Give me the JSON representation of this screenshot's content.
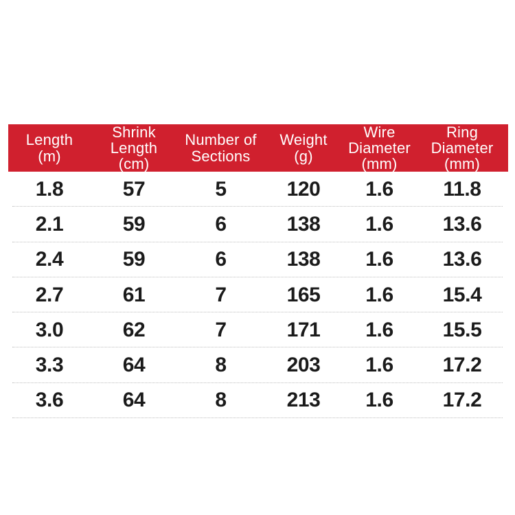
{
  "page": {
    "background_color": "#ffffff"
  },
  "table": {
    "header_bg_color": "#d0202e",
    "header_text_color": "#ffffff",
    "body_text_color": "#1b1b1b",
    "divider_color": "#bdbdbd",
    "columns": [
      {
        "label": "Length\n(m)"
      },
      {
        "label": "Shrink\nLength\n(cm)"
      },
      {
        "label": "Number of\nSections"
      },
      {
        "label": "Weight\n(g)"
      },
      {
        "label": "Wire\nDiameter\n(mm)"
      },
      {
        "label": "Ring\nDiameter\n(mm)"
      }
    ],
    "rows": [
      {
        "cells": [
          "1.8",
          "57",
          "5",
          "120",
          "1.6",
          "11.8"
        ]
      },
      {
        "cells": [
          "2.1",
          "59",
          "6",
          "138",
          "1.6",
          "13.6"
        ]
      },
      {
        "cells": [
          "2.4",
          "59",
          "6",
          "138",
          "1.6",
          "13.6"
        ]
      },
      {
        "cells": [
          "2.7",
          "61",
          "7",
          "165",
          "1.6",
          "15.4"
        ]
      },
      {
        "cells": [
          "3.0",
          "62",
          "7",
          "171",
          "1.6",
          "15.5"
        ]
      },
      {
        "cells": [
          "3.3",
          "64",
          "8",
          "203",
          "1.6",
          "17.2"
        ]
      },
      {
        "cells": [
          "3.6",
          "64",
          "8",
          "213",
          "1.6",
          "17.2"
        ]
      }
    ]
  },
  "chart_data": {
    "type": "table",
    "title": "",
    "columns": [
      "Length (m)",
      "Shrink Length (cm)",
      "Number of Sections",
      "Weight (g)",
      "Wire Diameter (mm)",
      "Ring Diameter (mm)"
    ],
    "rows": [
      [
        "1.8",
        "57",
        "5",
        "120",
        "1.6",
        "11.8"
      ],
      [
        "2.1",
        "59",
        "6",
        "138",
        "1.6",
        "13.6"
      ],
      [
        "2.4",
        "59",
        "6",
        "138",
        "1.6",
        "13.6"
      ],
      [
        "2.7",
        "61",
        "7",
        "165",
        "1.6",
        "15.4"
      ],
      [
        "3.0",
        "62",
        "7",
        "171",
        "1.6",
        "15.5"
      ],
      [
        "3.3",
        "64",
        "8",
        "203",
        "1.6",
        "17.2"
      ],
      [
        "3.6",
        "64",
        "8",
        "213",
        "1.6",
        "17.2"
      ]
    ]
  }
}
